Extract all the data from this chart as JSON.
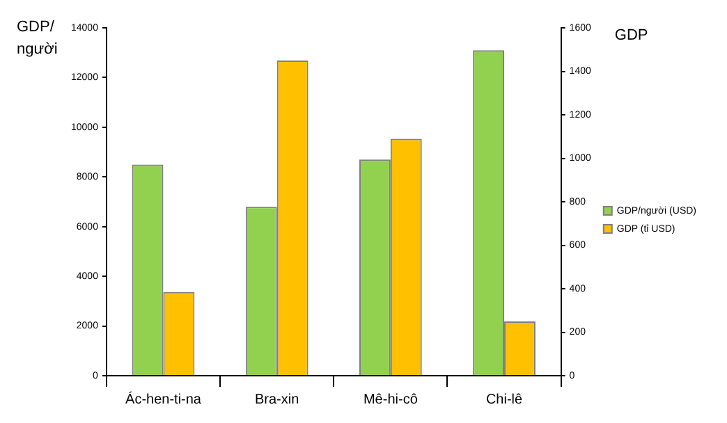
{
  "chart_data": {
    "type": "bar",
    "ylabel": "GDP/ người",
    "y2label": "GDP",
    "categories": [
      "Ác-hen-ti-na",
      "Bra-xin",
      "Mê-hi-cô",
      "Chi-lê"
    ],
    "series": [
      {
        "name": "GDP/người (USD)",
        "color": "#92d050",
        "values": [
          8500,
          6800,
          8700,
          13100
        ]
      },
      {
        "name": "GDP (tỉ USD)",
        "color": "#ffc000",
        "values": [
          385,
          1450,
          1090,
          250
        ],
        "axis": "y2"
      }
    ],
    "ylim": [
      0,
      14000
    ],
    "yticks": [
      0,
      2000,
      4000,
      6000,
      8000,
      10000,
      12000,
      14000
    ],
    "y2lim": [
      0,
      1600
    ],
    "y2ticks": [
      0,
      200,
      400,
      600,
      800,
      1000,
      1200,
      1400,
      1600
    ],
    "grid": false,
    "legend": "right"
  }
}
